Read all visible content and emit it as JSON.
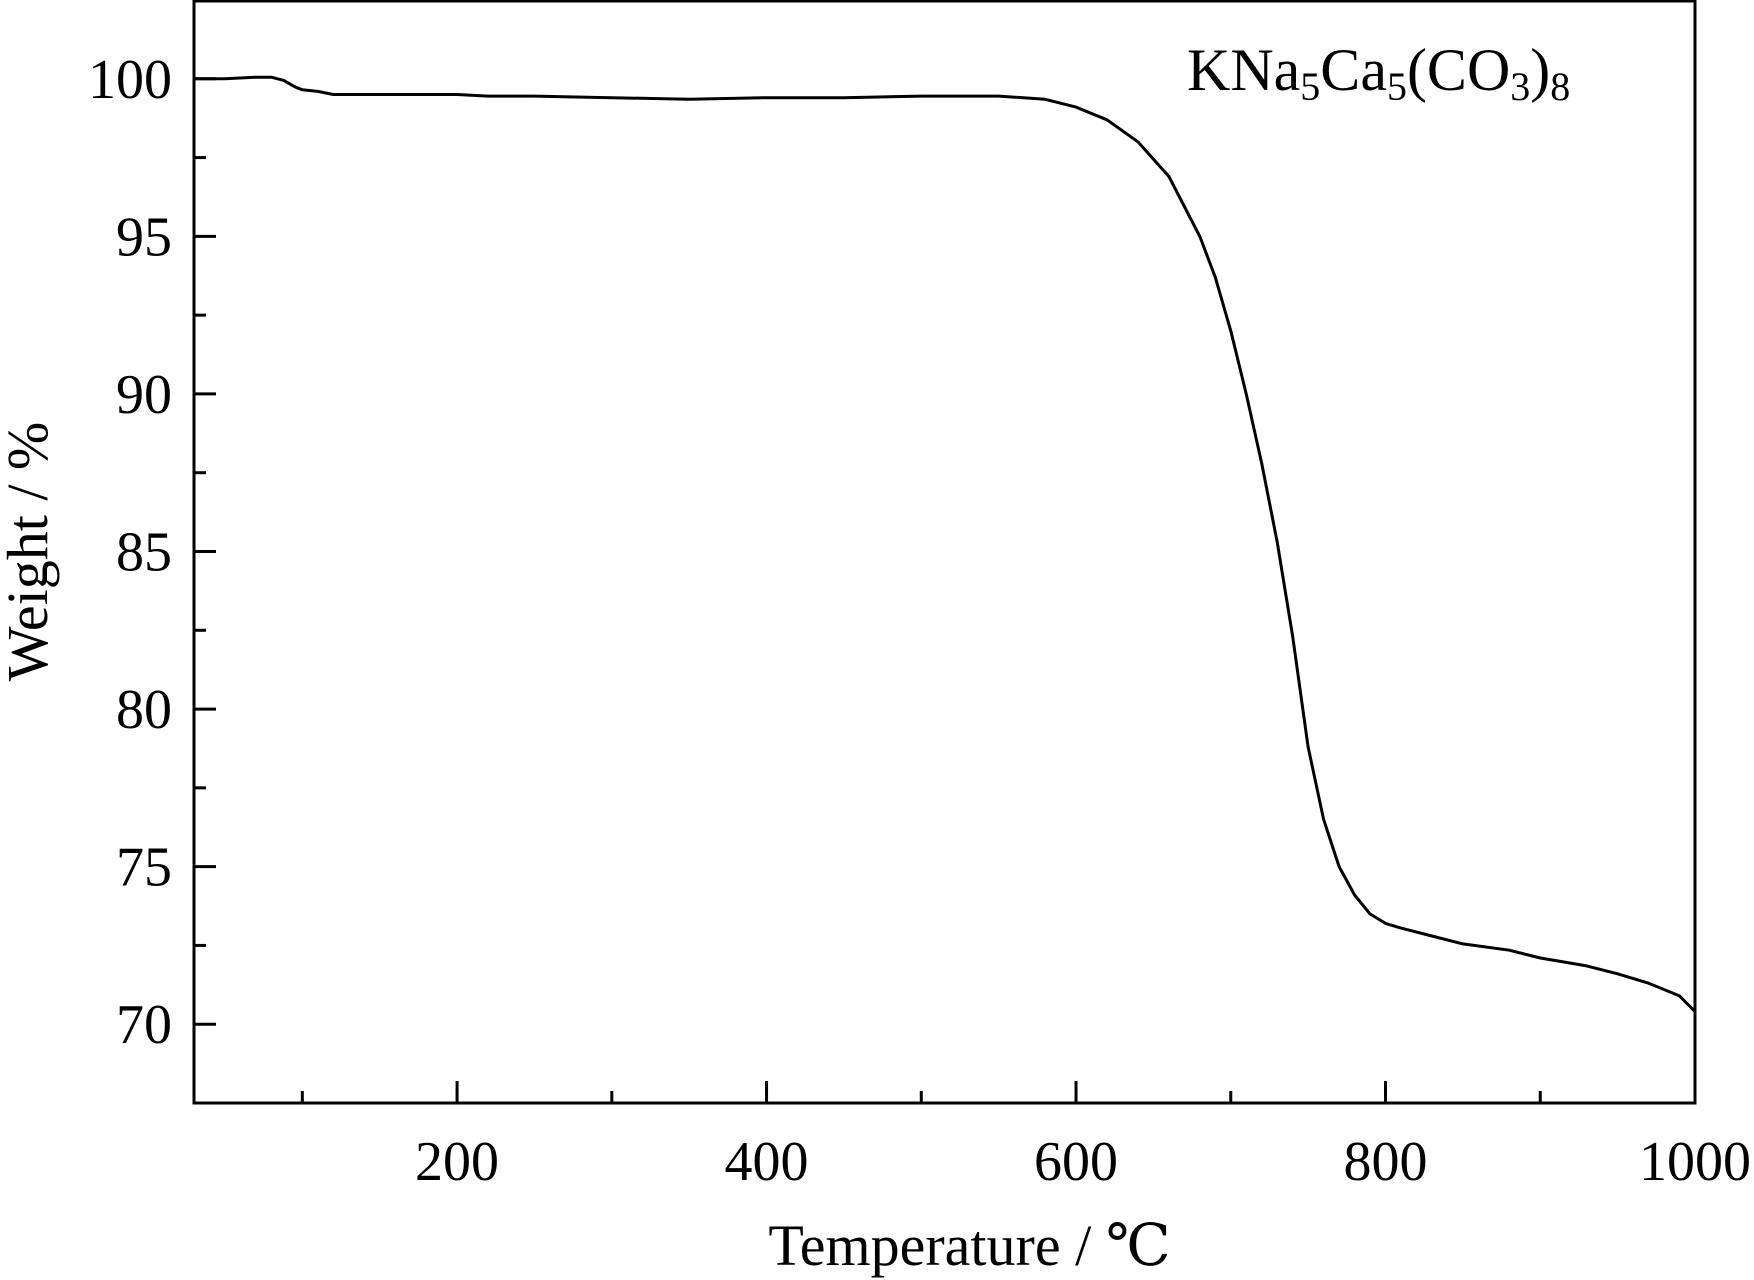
{
  "chart_data": {
    "type": "line",
    "title": "",
    "xlabel": "Temperature / ℃",
    "ylabel": "Weight / %",
    "annotation": {
      "parts": [
        {
          "t": "KNa",
          "sub": false
        },
        {
          "t": "5",
          "sub": true
        },
        {
          "t": "Ca",
          "sub": false
        },
        {
          "t": "5",
          "sub": true
        },
        {
          "t": "(CO",
          "sub": false
        },
        {
          "t": "3",
          "sub": true
        },
        {
          "t": ")",
          "sub": false
        },
        {
          "t": "8",
          "sub": true
        }
      ]
    },
    "xlim": [
      30,
      1000
    ],
    "ylim": [
      67.5,
      102.5
    ],
    "xticks_major": [
      200,
      400,
      600,
      800,
      1000
    ],
    "xtick_labels": [
      "200",
      "400",
      "600",
      "800",
      "1000"
    ],
    "xticks_minor": [
      100,
      300,
      500,
      700,
      900
    ],
    "yticks_major": [
      70,
      75,
      80,
      85,
      90,
      95,
      100
    ],
    "ytick_labels": [
      "70",
      "75",
      "80",
      "85",
      "90",
      "95",
      "100"
    ],
    "yticks_minor": [
      72.5,
      77.5,
      82.5,
      87.5,
      92.5,
      97.5
    ],
    "grid": false,
    "legend": "none",
    "series": [
      {
        "color": "#000000",
        "x": [
          30,
          50,
          70,
          80,
          88,
          95,
          100,
          110,
          120,
          130,
          150,
          200,
          220,
          250,
          300,
          350,
          400,
          450,
          500,
          520,
          550,
          580,
          600,
          620,
          640,
          660,
          680,
          690,
          700,
          710,
          720,
          730,
          740,
          750,
          760,
          770,
          780,
          790,
          800,
          810,
          830,
          850,
          880,
          900,
          930,
          950,
          970,
          990,
          1000
        ],
        "y": [
          100.0,
          100.0,
          100.05,
          100.05,
          99.95,
          99.75,
          99.65,
          99.6,
          99.5,
          99.5,
          99.5,
          99.5,
          99.45,
          99.45,
          99.4,
          99.35,
          99.4,
          99.4,
          99.45,
          99.45,
          99.45,
          99.35,
          99.1,
          98.7,
          98.0,
          96.9,
          95.0,
          93.7,
          92.0,
          90.0,
          87.8,
          85.3,
          82.3,
          78.8,
          76.5,
          75.0,
          74.1,
          73.5,
          73.2,
          73.05,
          72.8,
          72.55,
          72.35,
          72.1,
          71.85,
          71.6,
          71.3,
          70.9,
          70.4
        ]
      }
    ]
  }
}
